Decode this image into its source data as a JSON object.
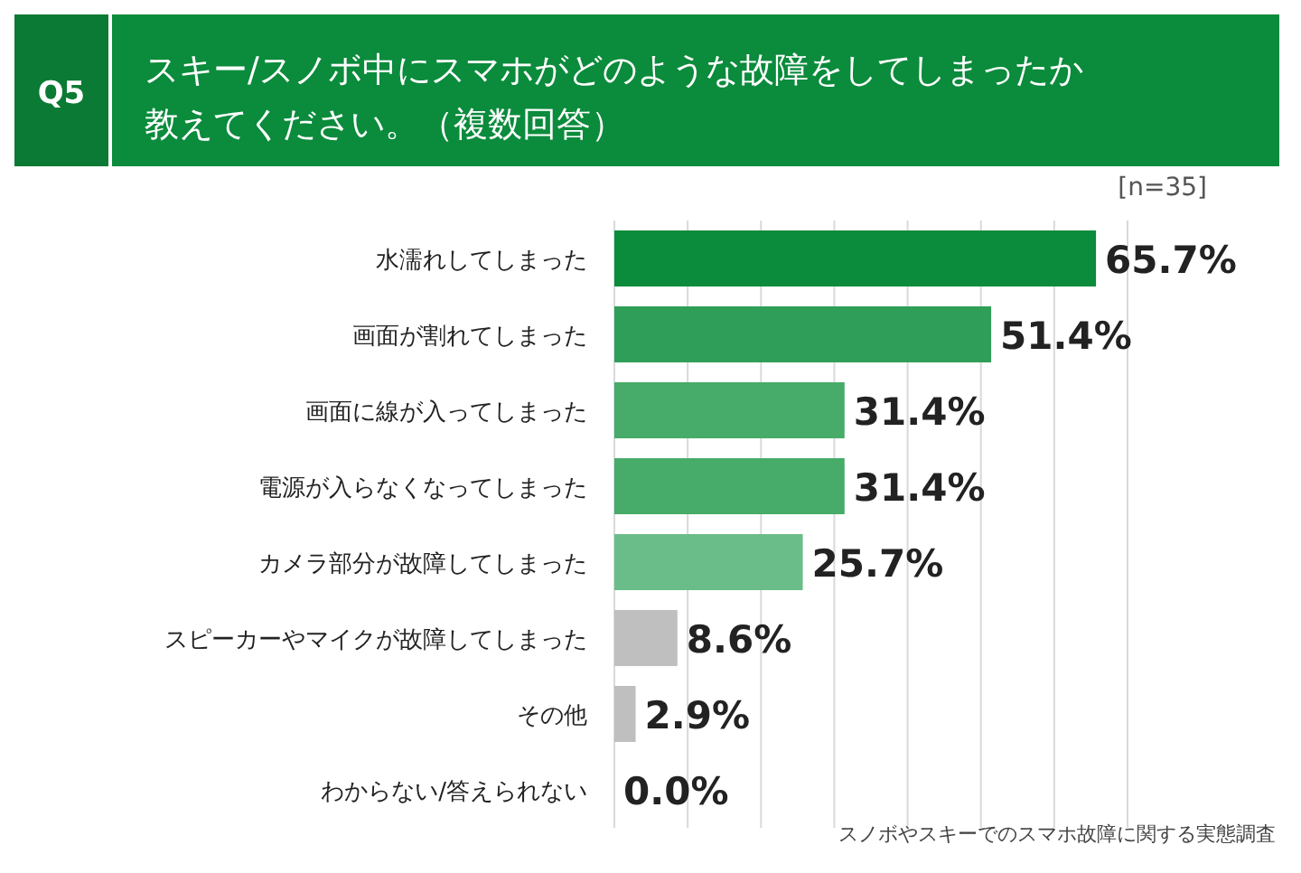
{
  "chart_data": {
    "type": "bar",
    "orientation": "horizontal",
    "title": "Q5",
    "subtitle": "スキー/スノボ中にスマホがどのような故障をしてしまったか教えてください。（複数回答）",
    "categories": [
      "水濡れしてしまった",
      "画面が割れてしまった",
      "画面に線が入ってしまった",
      "電源が入らなくなってしまった",
      "カメラ部分が故障してしまった",
      "スピーカーやマイクが故障してしまった",
      "その他",
      "わからない/答えられない"
    ],
    "values": [
      65.7,
      51.4,
      31.4,
      31.4,
      25.7,
      8.6,
      2.9,
      0.0
    ],
    "value_labels": [
      "65.7%",
      "51.4%",
      "31.4%",
      "31.4%",
      "25.7%",
      "8.6%",
      "2.9%",
      "0.0%"
    ],
    "colors": [
      "#0b8b3c",
      "#2f9e58",
      "#47ab69",
      "#47ab69",
      "#6abd88",
      "#bfbfbf",
      "#bfbfbf",
      "#bfbfbf"
    ],
    "xlim": [
      0,
      70
    ],
    "xticks": [
      {
        "value": 0,
        "label": null
      },
      {
        "value": 10,
        "label": null
      },
      {
        "value": 20,
        "label": null
      },
      {
        "value": 30,
        "label": null
      },
      {
        "value": 40,
        "label": null
      },
      {
        "value": 50,
        "label": null
      },
      {
        "value": 60,
        "label": null
      },
      {
        "value": 70,
        "label": null
      }
    ],
    "tick_labels": "y",
    "grid": "x",
    "annotations": [
      "[n=35]",
      "スノボやスキーでのスマホ故障に関する実態調査"
    ]
  }
}
